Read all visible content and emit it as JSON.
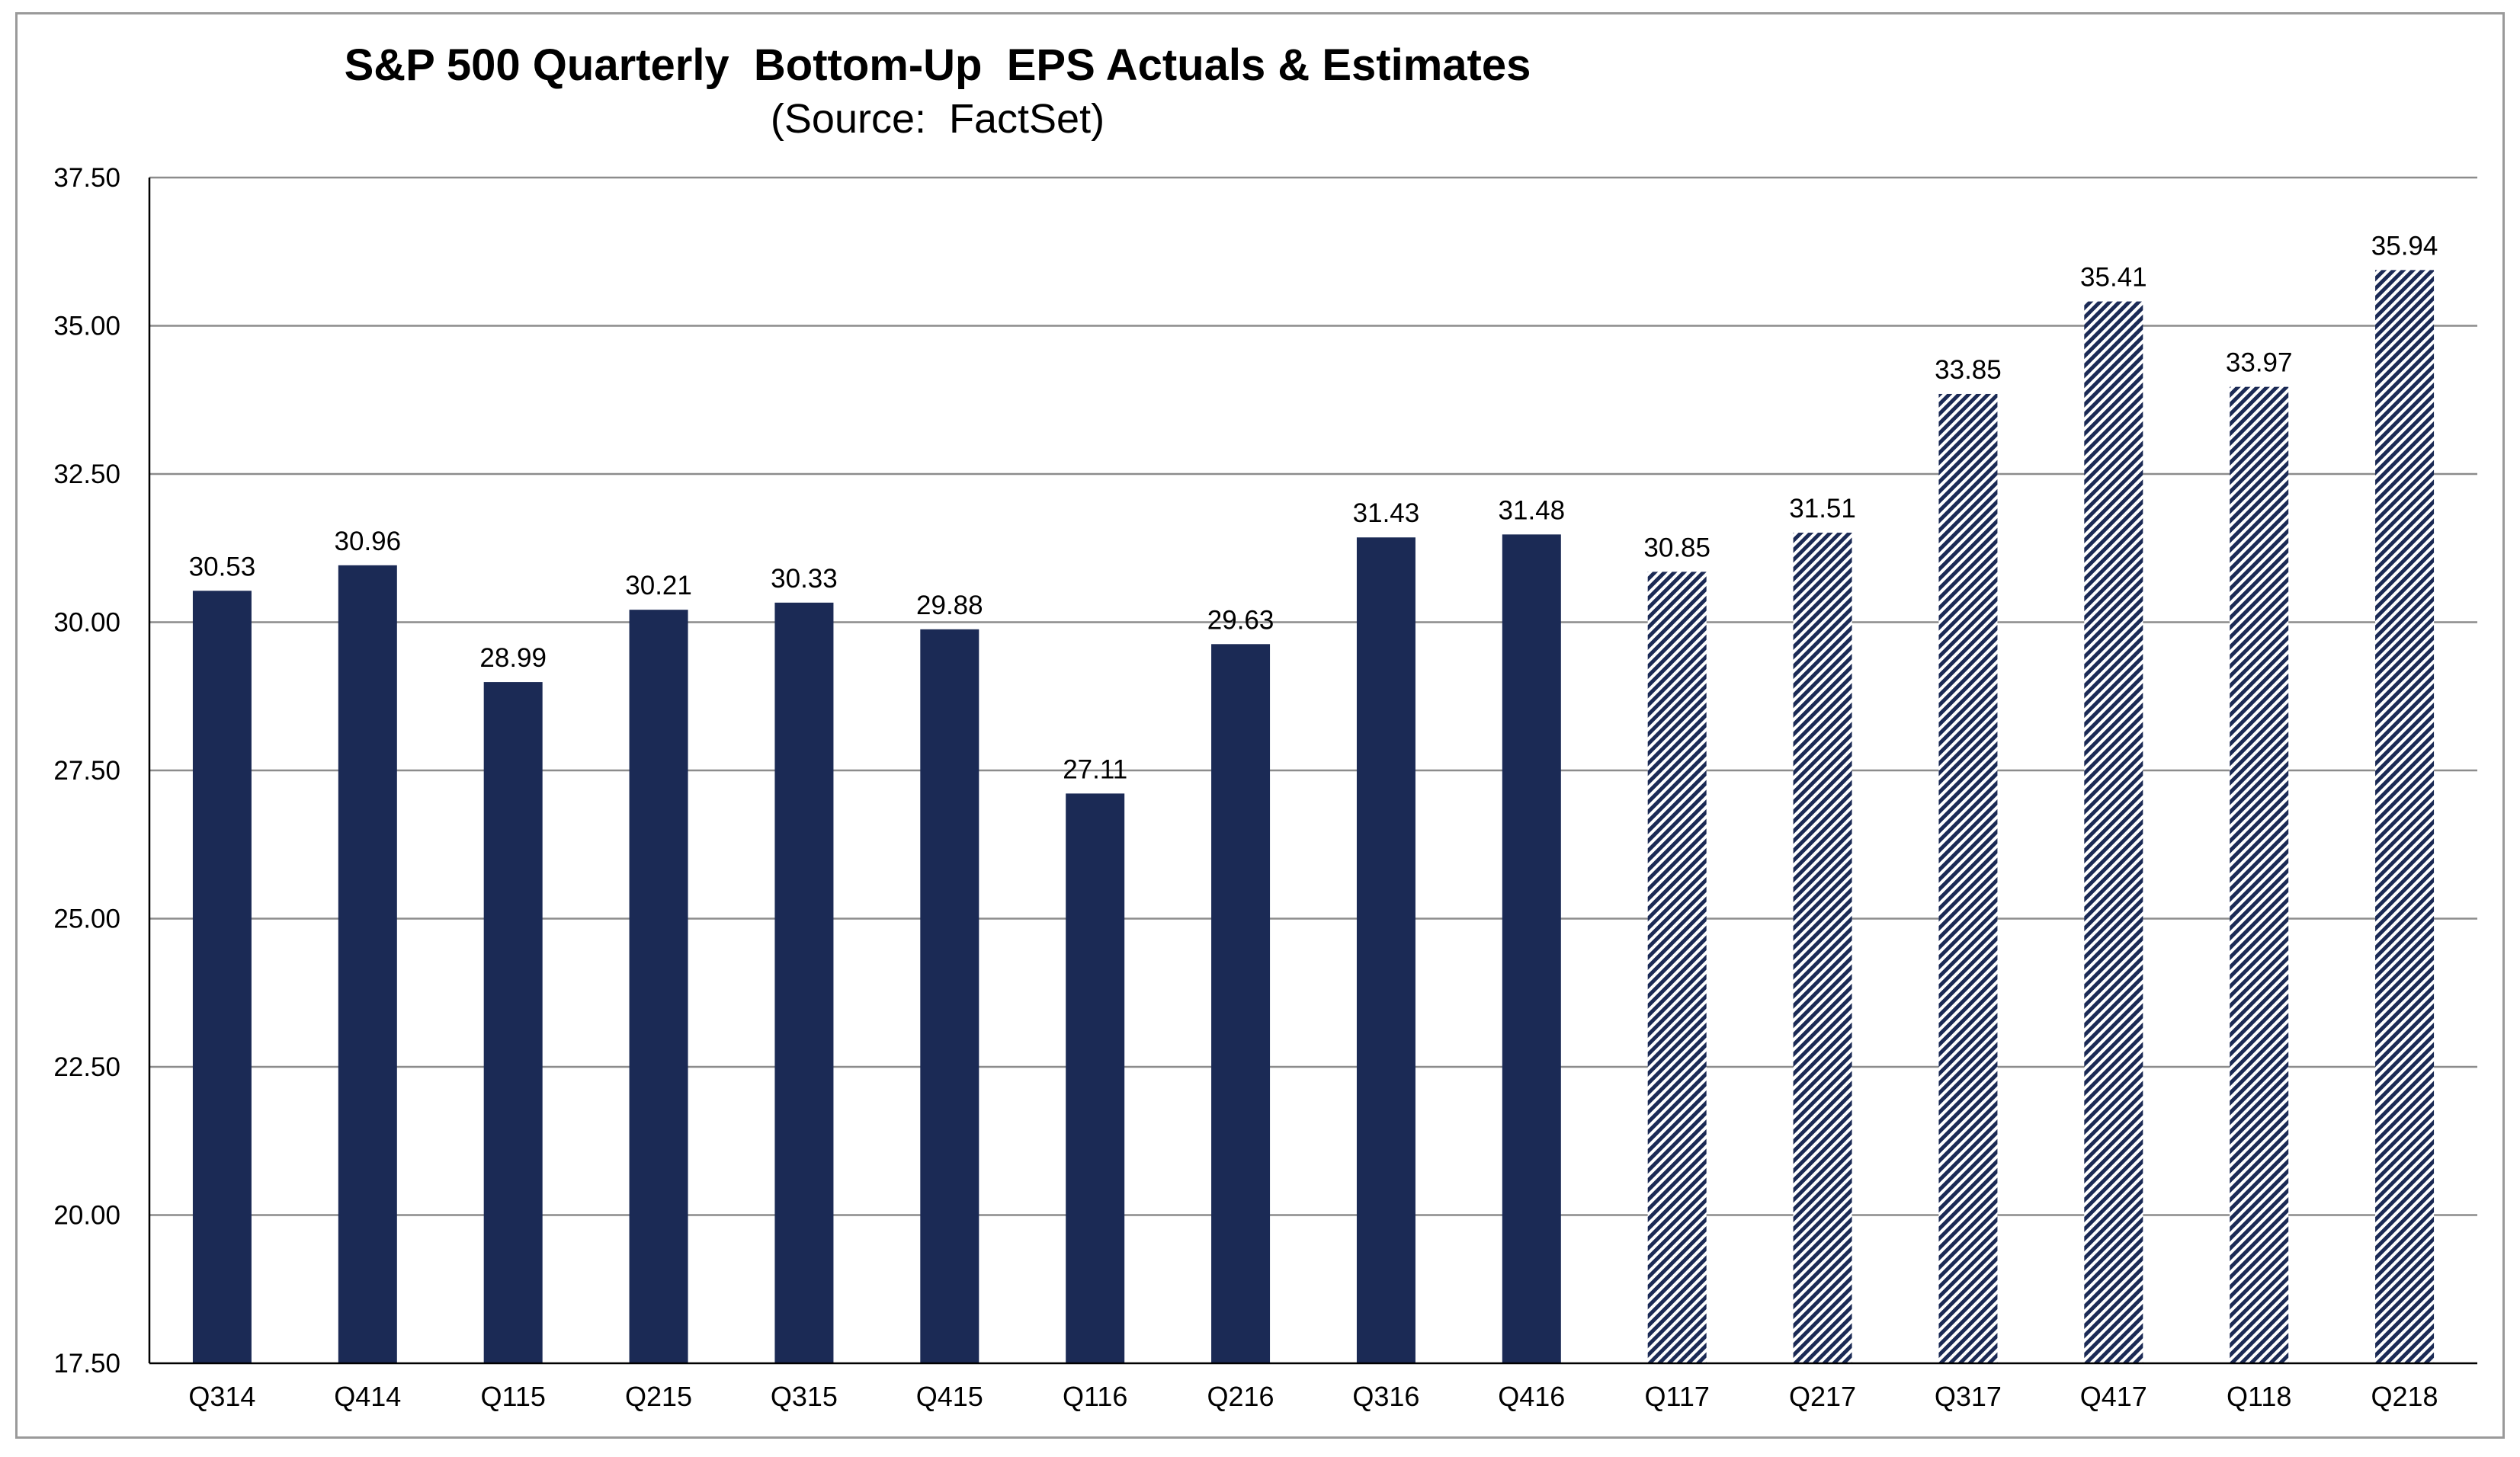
{
  "chart_data": {
    "type": "bar",
    "title": "S&P 500 Quarterly  Bottom-Up  EPS Actuals & Estimates",
    "subtitle": "(Source:  FactSet)",
    "xlabel": "",
    "ylabel": "",
    "ylim": [
      17.5,
      37.5
    ],
    "yticks": [
      "17.50",
      "20.00",
      "22.50",
      "25.00",
      "27.50",
      "30.00",
      "32.50",
      "35.00",
      "37.50"
    ],
    "grid": true,
    "categories": [
      "Q314",
      "Q414",
      "Q115",
      "Q215",
      "Q315",
      "Q415",
      "Q116",
      "Q216",
      "Q316",
      "Q416",
      "Q117",
      "Q217",
      "Q317",
      "Q417",
      "Q118",
      "Q218"
    ],
    "values": [
      30.53,
      30.96,
      28.99,
      30.21,
      30.33,
      29.88,
      27.11,
      29.63,
      31.43,
      31.48,
      30.85,
      31.51,
      33.85,
      35.41,
      33.97,
      35.94
    ],
    "value_labels": [
      "30.53",
      "30.96",
      "28.99",
      "30.21",
      "30.33",
      "29.88",
      "27.11",
      "29.63",
      "31.43",
      "31.48",
      "30.85",
      "31.51",
      "33.85",
      "35.41",
      "33.97",
      "35.94"
    ],
    "bar_style": [
      "solid",
      "solid",
      "solid",
      "solid",
      "solid",
      "solid",
      "solid",
      "solid",
      "solid",
      "solid",
      "hatched",
      "hatched",
      "hatched",
      "hatched",
      "hatched",
      "hatched"
    ],
    "colors": {
      "bar": "#1b2a55",
      "grid": "#8c8c8c",
      "axis": "#000000",
      "hatch_bg": "#ffffff"
    }
  }
}
